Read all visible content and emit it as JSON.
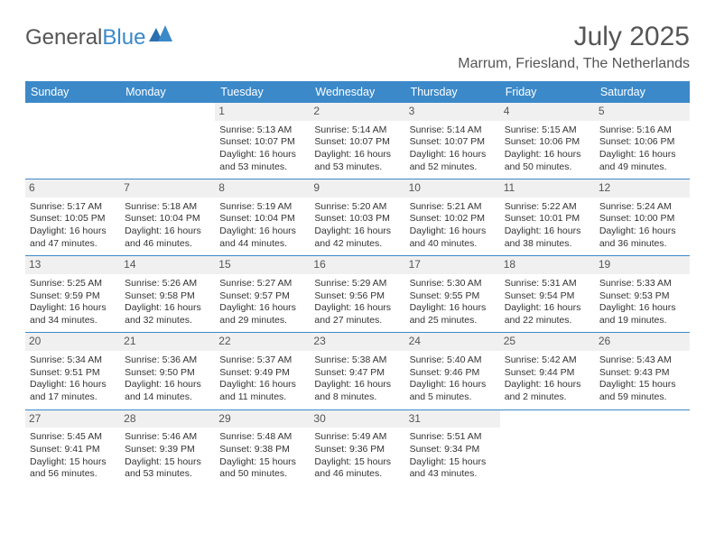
{
  "brand": {
    "part1": "General",
    "part2": "Blue"
  },
  "title": "July 2025",
  "location": "Marrum, Friesland, The Netherlands",
  "colors": {
    "accent": "#3b89c9",
    "text": "#555555",
    "cell_text": "#333333",
    "daynum_bg": "#f0f0f0",
    "background": "#ffffff"
  },
  "dayNames": [
    "Sunday",
    "Monday",
    "Tuesday",
    "Wednesday",
    "Thursday",
    "Friday",
    "Saturday"
  ],
  "weeks": [
    [
      null,
      null,
      {
        "n": "1",
        "sr": "Sunrise: 5:13 AM",
        "ss": "Sunset: 10:07 PM",
        "d1": "Daylight: 16 hours",
        "d2": "and 53 minutes."
      },
      {
        "n": "2",
        "sr": "Sunrise: 5:14 AM",
        "ss": "Sunset: 10:07 PM",
        "d1": "Daylight: 16 hours",
        "d2": "and 53 minutes."
      },
      {
        "n": "3",
        "sr": "Sunrise: 5:14 AM",
        "ss": "Sunset: 10:07 PM",
        "d1": "Daylight: 16 hours",
        "d2": "and 52 minutes."
      },
      {
        "n": "4",
        "sr": "Sunrise: 5:15 AM",
        "ss": "Sunset: 10:06 PM",
        "d1": "Daylight: 16 hours",
        "d2": "and 50 minutes."
      },
      {
        "n": "5",
        "sr": "Sunrise: 5:16 AM",
        "ss": "Sunset: 10:06 PM",
        "d1": "Daylight: 16 hours",
        "d2": "and 49 minutes."
      }
    ],
    [
      {
        "n": "6",
        "sr": "Sunrise: 5:17 AM",
        "ss": "Sunset: 10:05 PM",
        "d1": "Daylight: 16 hours",
        "d2": "and 47 minutes."
      },
      {
        "n": "7",
        "sr": "Sunrise: 5:18 AM",
        "ss": "Sunset: 10:04 PM",
        "d1": "Daylight: 16 hours",
        "d2": "and 46 minutes."
      },
      {
        "n": "8",
        "sr": "Sunrise: 5:19 AM",
        "ss": "Sunset: 10:04 PM",
        "d1": "Daylight: 16 hours",
        "d2": "and 44 minutes."
      },
      {
        "n": "9",
        "sr": "Sunrise: 5:20 AM",
        "ss": "Sunset: 10:03 PM",
        "d1": "Daylight: 16 hours",
        "d2": "and 42 minutes."
      },
      {
        "n": "10",
        "sr": "Sunrise: 5:21 AM",
        "ss": "Sunset: 10:02 PM",
        "d1": "Daylight: 16 hours",
        "d2": "and 40 minutes."
      },
      {
        "n": "11",
        "sr": "Sunrise: 5:22 AM",
        "ss": "Sunset: 10:01 PM",
        "d1": "Daylight: 16 hours",
        "d2": "and 38 minutes."
      },
      {
        "n": "12",
        "sr": "Sunrise: 5:24 AM",
        "ss": "Sunset: 10:00 PM",
        "d1": "Daylight: 16 hours",
        "d2": "and 36 minutes."
      }
    ],
    [
      {
        "n": "13",
        "sr": "Sunrise: 5:25 AM",
        "ss": "Sunset: 9:59 PM",
        "d1": "Daylight: 16 hours",
        "d2": "and 34 minutes."
      },
      {
        "n": "14",
        "sr": "Sunrise: 5:26 AM",
        "ss": "Sunset: 9:58 PM",
        "d1": "Daylight: 16 hours",
        "d2": "and 32 minutes."
      },
      {
        "n": "15",
        "sr": "Sunrise: 5:27 AM",
        "ss": "Sunset: 9:57 PM",
        "d1": "Daylight: 16 hours",
        "d2": "and 29 minutes."
      },
      {
        "n": "16",
        "sr": "Sunrise: 5:29 AM",
        "ss": "Sunset: 9:56 PM",
        "d1": "Daylight: 16 hours",
        "d2": "and 27 minutes."
      },
      {
        "n": "17",
        "sr": "Sunrise: 5:30 AM",
        "ss": "Sunset: 9:55 PM",
        "d1": "Daylight: 16 hours",
        "d2": "and 25 minutes."
      },
      {
        "n": "18",
        "sr": "Sunrise: 5:31 AM",
        "ss": "Sunset: 9:54 PM",
        "d1": "Daylight: 16 hours",
        "d2": "and 22 minutes."
      },
      {
        "n": "19",
        "sr": "Sunrise: 5:33 AM",
        "ss": "Sunset: 9:53 PM",
        "d1": "Daylight: 16 hours",
        "d2": "and 19 minutes."
      }
    ],
    [
      {
        "n": "20",
        "sr": "Sunrise: 5:34 AM",
        "ss": "Sunset: 9:51 PM",
        "d1": "Daylight: 16 hours",
        "d2": "and 17 minutes."
      },
      {
        "n": "21",
        "sr": "Sunrise: 5:36 AM",
        "ss": "Sunset: 9:50 PM",
        "d1": "Daylight: 16 hours",
        "d2": "and 14 minutes."
      },
      {
        "n": "22",
        "sr": "Sunrise: 5:37 AM",
        "ss": "Sunset: 9:49 PM",
        "d1": "Daylight: 16 hours",
        "d2": "and 11 minutes."
      },
      {
        "n": "23",
        "sr": "Sunrise: 5:38 AM",
        "ss": "Sunset: 9:47 PM",
        "d1": "Daylight: 16 hours",
        "d2": "and 8 minutes."
      },
      {
        "n": "24",
        "sr": "Sunrise: 5:40 AM",
        "ss": "Sunset: 9:46 PM",
        "d1": "Daylight: 16 hours",
        "d2": "and 5 minutes."
      },
      {
        "n": "25",
        "sr": "Sunrise: 5:42 AM",
        "ss": "Sunset: 9:44 PM",
        "d1": "Daylight: 16 hours",
        "d2": "and 2 minutes."
      },
      {
        "n": "26",
        "sr": "Sunrise: 5:43 AM",
        "ss": "Sunset: 9:43 PM",
        "d1": "Daylight: 15 hours",
        "d2": "and 59 minutes."
      }
    ],
    [
      {
        "n": "27",
        "sr": "Sunrise: 5:45 AM",
        "ss": "Sunset: 9:41 PM",
        "d1": "Daylight: 15 hours",
        "d2": "and 56 minutes."
      },
      {
        "n": "28",
        "sr": "Sunrise: 5:46 AM",
        "ss": "Sunset: 9:39 PM",
        "d1": "Daylight: 15 hours",
        "d2": "and 53 minutes."
      },
      {
        "n": "29",
        "sr": "Sunrise: 5:48 AM",
        "ss": "Sunset: 9:38 PM",
        "d1": "Daylight: 15 hours",
        "d2": "and 50 minutes."
      },
      {
        "n": "30",
        "sr": "Sunrise: 5:49 AM",
        "ss": "Sunset: 9:36 PM",
        "d1": "Daylight: 15 hours",
        "d2": "and 46 minutes."
      },
      {
        "n": "31",
        "sr": "Sunrise: 5:51 AM",
        "ss": "Sunset: 9:34 PM",
        "d1": "Daylight: 15 hours",
        "d2": "and 43 minutes."
      },
      null,
      null
    ]
  ]
}
